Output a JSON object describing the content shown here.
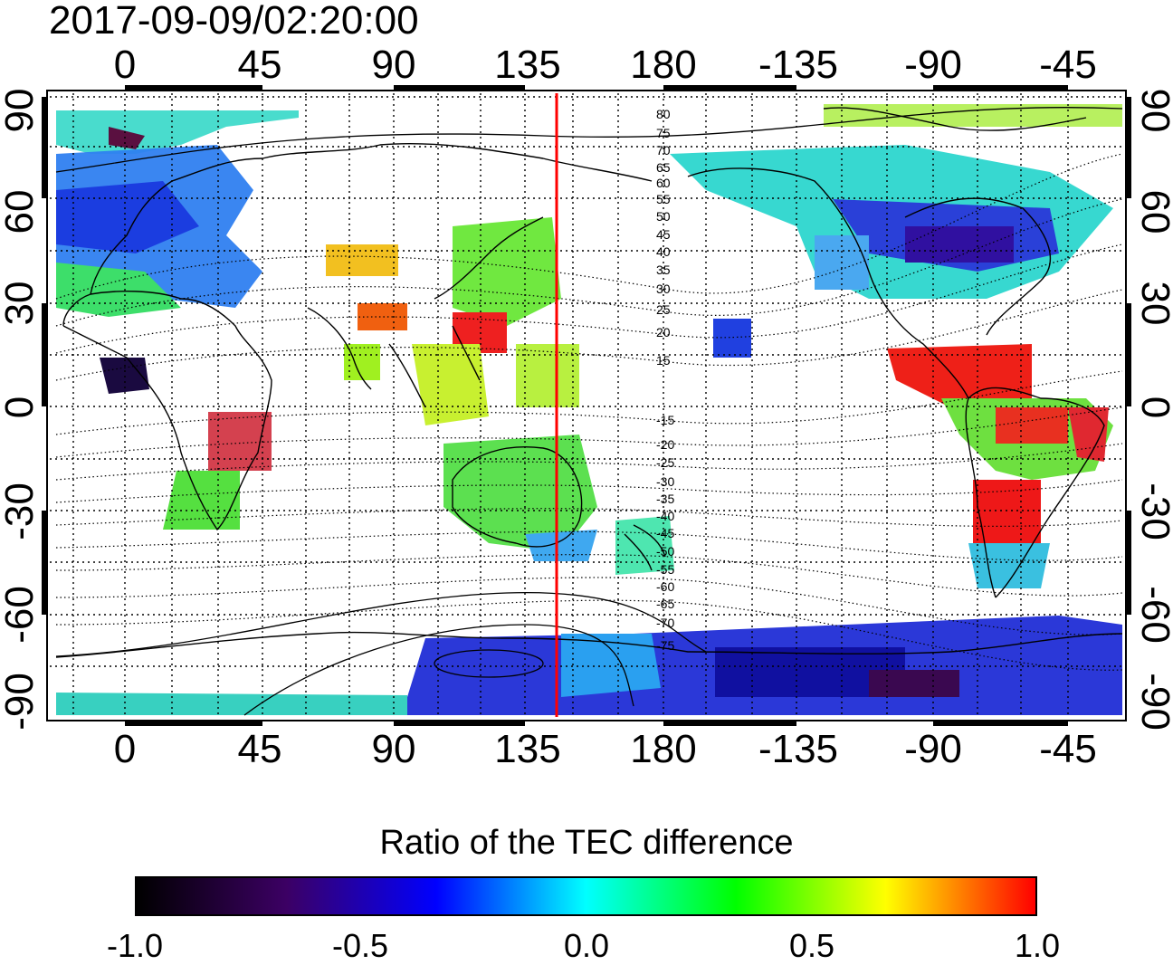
{
  "title": "2017-09-09/02:20:00",
  "lon_ticks": [
    "0",
    "45",
    "90",
    "135",
    "180",
    "-135",
    "-90",
    "-45"
  ],
  "lat_ticks": [
    "90",
    "60",
    "30",
    "0",
    "-30",
    "-60",
    "-90"
  ],
  "magnetic_lat_labels": [
    "80",
    "75",
    "70",
    "65",
    "60",
    "55",
    "50",
    "45",
    "40",
    "35",
    "30",
    "25",
    "20",
    "15",
    "-15",
    "-20",
    "-25",
    "-30",
    "-35",
    "-40",
    "-45",
    "-50",
    "-55",
    "-60",
    "-65",
    "-70",
    "-75"
  ],
  "colorbar": {
    "title": "Ratio of the TEC difference",
    "ticks": [
      "-1.0",
      "-0.5",
      "0.0",
      "0.5",
      "1.0"
    ],
    "gradient": [
      "#000000",
      "#3c0064",
      "#0000ff",
      "#00ffff",
      "#00ff00",
      "#ffff00",
      "#ff0000"
    ]
  },
  "colors": {
    "terminator_line": "#ff0000",
    "coastline": "#000000",
    "grid": "#000000"
  }
}
